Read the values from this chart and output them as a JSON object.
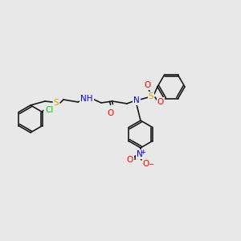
{
  "bg_color": "#e8e8e8",
  "bond_color": "#1a1a1a",
  "atom_colors": {
    "N": "#0000ff",
    "O": "#ff0000",
    "S": "#ccaa00",
    "Cl": "#00cc00",
    "H": "#7fbfbf",
    "C": "#1a1a1a"
  },
  "line_width": 1.2,
  "font_size": 7.5
}
